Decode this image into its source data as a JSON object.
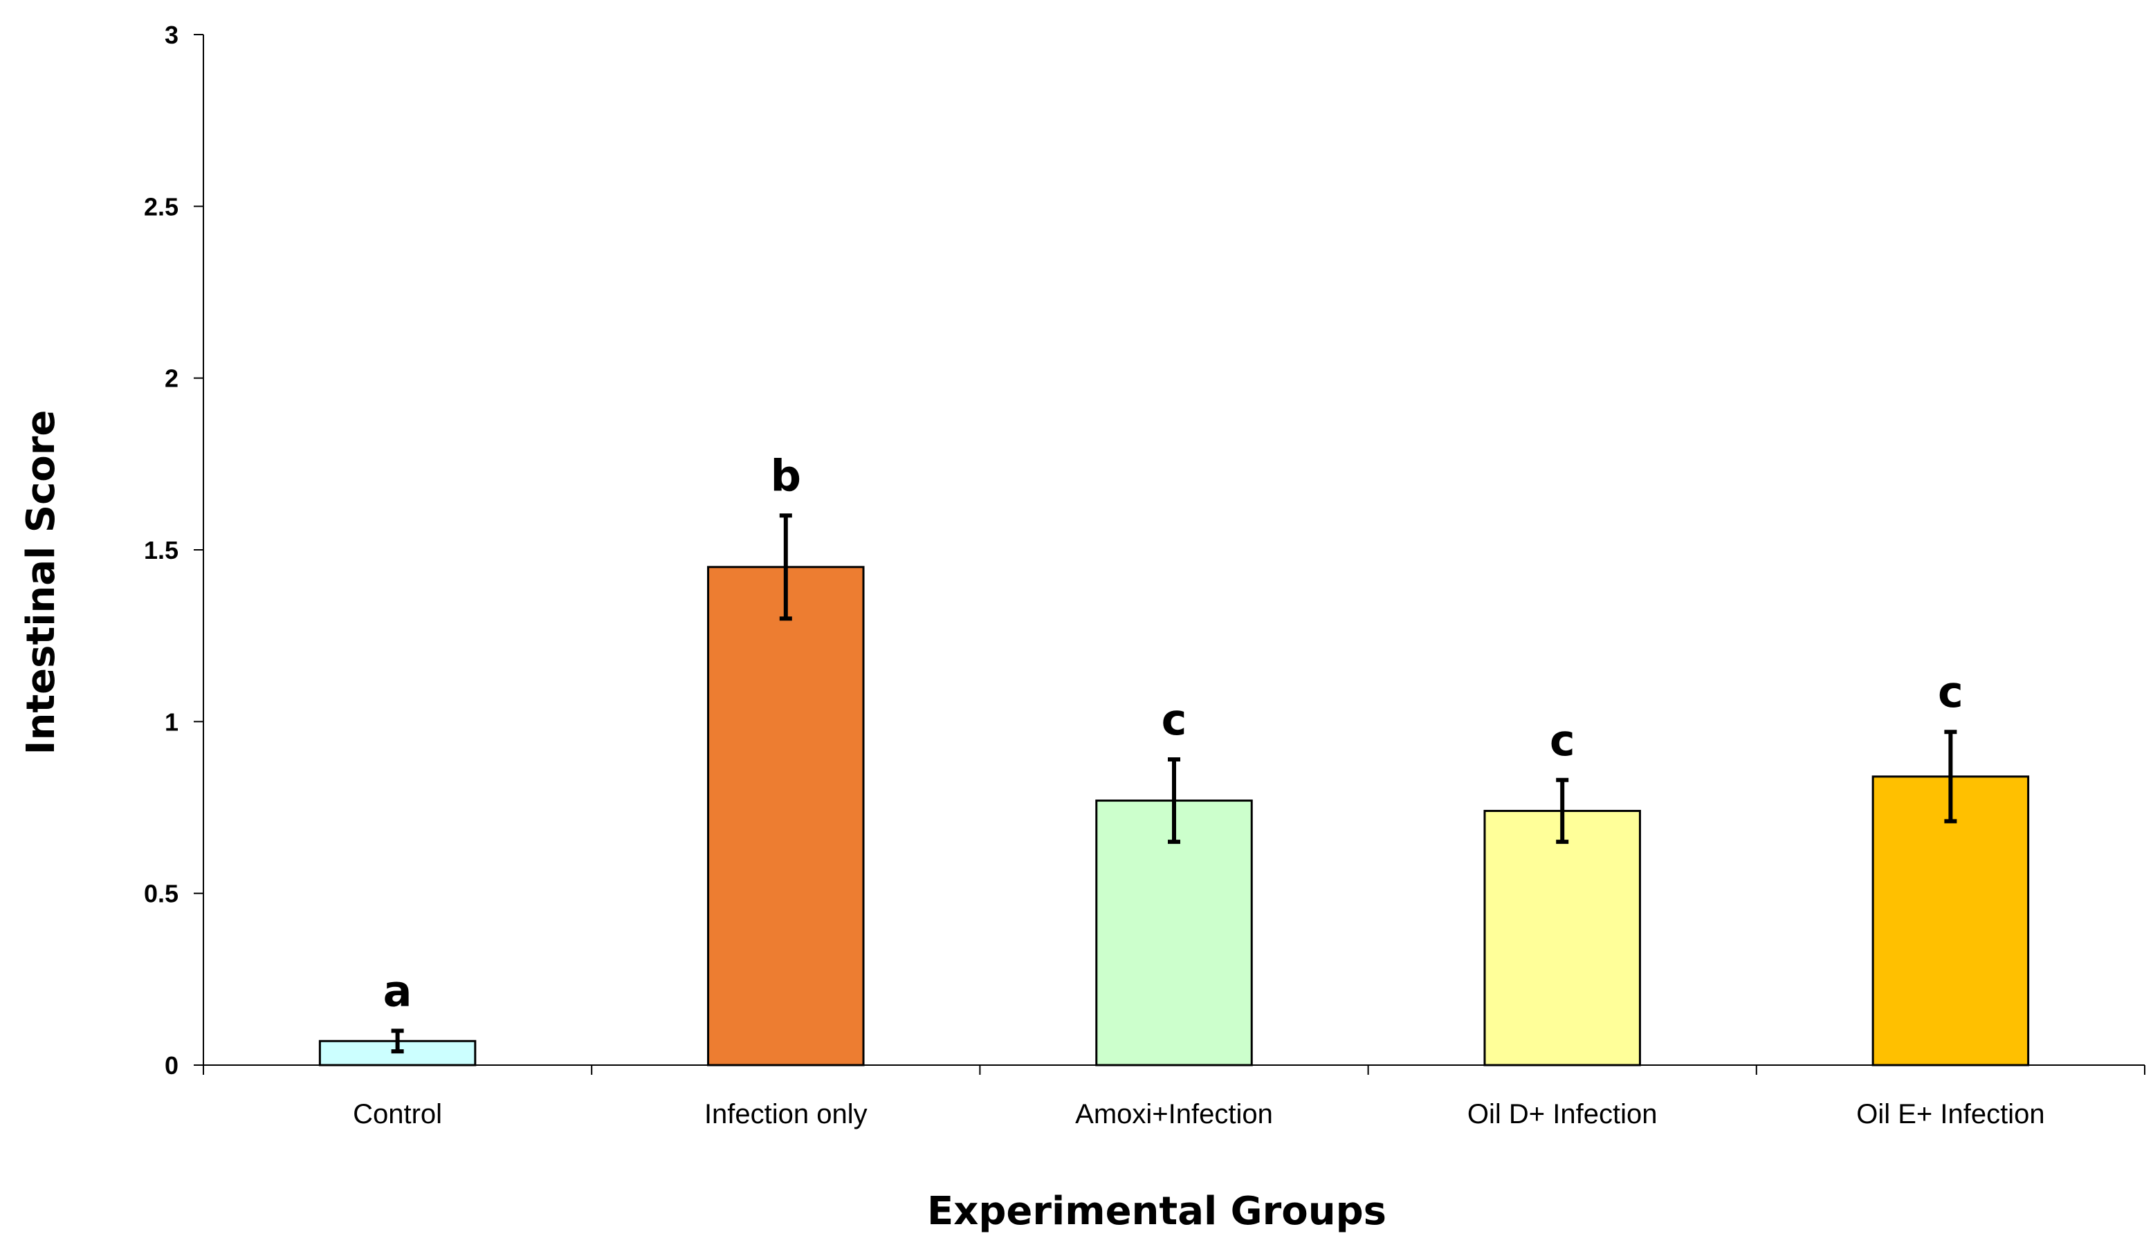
{
  "chart_data": {
    "type": "bar",
    "title": "",
    "xlabel": "Experimental Groups",
    "ylabel": "Intestinal Score",
    "ylim": [
      0,
      3
    ],
    "yticks": [
      "0",
      "0.5",
      "1",
      "1.5",
      "2",
      "2.5",
      "3"
    ],
    "grid": false,
    "categories": [
      "Control",
      "Infection only",
      "Amoxi+Infection",
      "Oil D+ Infection",
      "Oil E+ Infection"
    ],
    "values": [
      0.07,
      1.45,
      0.77,
      0.74,
      0.84
    ],
    "errors": [
      0.03,
      0.15,
      0.12,
      0.09,
      0.13
    ],
    "significance": [
      "a",
      "b",
      "c",
      "c",
      "c"
    ],
    "colors": [
      "#ccffff",
      "#ed7d31",
      "#ccffcc",
      "#ffff99",
      "#ffc000"
    ]
  }
}
